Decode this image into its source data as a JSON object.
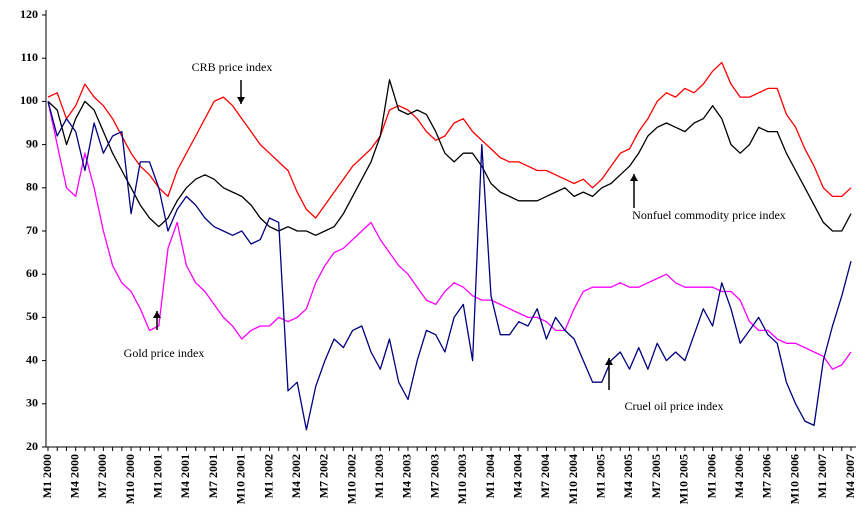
{
  "chart_data": {
    "type": "line",
    "categories": [
      "M1 2000",
      null,
      null,
      "M4 2000",
      null,
      null,
      "M7 2000",
      null,
      null,
      "M10 2000",
      null,
      null,
      "M1 2001",
      null,
      null,
      "M4 2001",
      null,
      null,
      "M7 2001",
      null,
      null,
      "M10 2001",
      null,
      null,
      "M1 2002",
      null,
      null,
      "M4 2002",
      null,
      null,
      "M7 2002",
      null,
      null,
      "M10 2002",
      null,
      null,
      "M1 2003",
      null,
      null,
      "M4 2003",
      null,
      null,
      "M7 2003",
      null,
      null,
      "M10 2003",
      null,
      null,
      "M1 2004",
      null,
      null,
      "M4 2004",
      null,
      null,
      "M7 2004",
      null,
      null,
      "M10 2004",
      null,
      null,
      "M1 2005",
      null,
      null,
      "M4 2005",
      null,
      null,
      "M7 2005",
      null,
      null,
      "M10 2005",
      null,
      null,
      "M1 2006",
      null,
      null,
      "M4 2006",
      null,
      null,
      "M7 2006",
      null,
      null,
      "M10 2006",
      null,
      null,
      "M1 2007",
      null,
      null,
      "M4 2007"
    ],
    "series": [
      {
        "name": "CRB price index",
        "color": "#ff0000",
        "values": [
          101,
          102,
          96,
          99,
          104,
          101,
          99,
          96,
          92,
          88,
          85,
          83,
          80,
          78,
          84,
          88,
          92,
          96,
          100,
          101,
          99,
          96,
          93,
          90,
          88,
          86,
          84,
          79,
          75,
          73,
          76,
          79,
          82,
          85,
          87,
          89,
          92,
          98,
          99,
          98,
          96,
          93,
          91,
          92,
          95,
          96,
          93,
          91,
          89,
          87,
          86,
          86,
          85,
          84,
          84,
          83,
          82,
          81,
          82,
          80,
          82,
          85,
          88,
          89,
          93,
          96,
          100,
          102,
          101,
          103,
          102,
          104,
          107,
          109,
          104,
          101,
          101,
          102,
          103,
          103,
          97,
          94,
          89,
          85,
          80,
          78,
          78,
          80
        ]
      },
      {
        "name": "Nonfuel commodity price index",
        "color": "#000000",
        "values": [
          100,
          98,
          90,
          96,
          100,
          98,
          93,
          88,
          84,
          80,
          76,
          73,
          71,
          73,
          77,
          80,
          82,
          83,
          82,
          80,
          79,
          78,
          76,
          73,
          71,
          70,
          71,
          70,
          70,
          69,
          70,
          71,
          74,
          78,
          82,
          86,
          92,
          105,
          98,
          97,
          98,
          97,
          93,
          88,
          86,
          88,
          88,
          85,
          81,
          79,
          78,
          77,
          77,
          77,
          78,
          79,
          80,
          78,
          79,
          78,
          80,
          81,
          83,
          85,
          88,
          92,
          94,
          95,
          94,
          93,
          95,
          96,
          99,
          96,
          90,
          88,
          90,
          94,
          93,
          93,
          88,
          84,
          80,
          76,
          72,
          70,
          70,
          74
        ]
      },
      {
        "name": "Gold price index",
        "color": "#ff00ff",
        "values": [
          100,
          90,
          80,
          78,
          88,
          80,
          70,
          62,
          58,
          56,
          52,
          47,
          48,
          66,
          72,
          62,
          58,
          56,
          53,
          50,
          48,
          45,
          47,
          48,
          48,
          50,
          49,
          50,
          52,
          58,
          62,
          65,
          66,
          68,
          70,
          72,
          68,
          65,
          62,
          60,
          57,
          54,
          53,
          56,
          58,
          57,
          55,
          54,
          54,
          53,
          52,
          51,
          50,
          50,
          49,
          47,
          47,
          52,
          56,
          57,
          57,
          57,
          58,
          57,
          57,
          58,
          59,
          60,
          58,
          57,
          57,
          57,
          57,
          56,
          56,
          54,
          49,
          47,
          47,
          45,
          44,
          44,
          43,
          42,
          41,
          38,
          39,
          42
        ]
      },
      {
        "name": "Cruel oil price index",
        "color": "#000080",
        "values": [
          100,
          92,
          96,
          93,
          84,
          95,
          88,
          92,
          93,
          74,
          86,
          86,
          80,
          70,
          75,
          78,
          76,
          73,
          71,
          70,
          69,
          70,
          67,
          68,
          73,
          72,
          33,
          35,
          24,
          34,
          40,
          45,
          43,
          47,
          48,
          42,
          38,
          45,
          35,
          31,
          40,
          47,
          46,
          42,
          50,
          53,
          40,
          90,
          55,
          46,
          46,
          49,
          48,
          52,
          45,
          50,
          47,
          45,
          40,
          35,
          35,
          40,
          42,
          38,
          43,
          38,
          44,
          40,
          42,
          40,
          46,
          52,
          48,
          58,
          52,
          44,
          47,
          50,
          46,
          44,
          35,
          30,
          26,
          25,
          40,
          48,
          55,
          63
        ]
      }
    ],
    "ylim": [
      20,
      120
    ],
    "yticks": [
      20,
      30,
      40,
      50,
      60,
      70,
      80,
      90,
      100,
      110,
      120
    ],
    "grid": false
  }
}
